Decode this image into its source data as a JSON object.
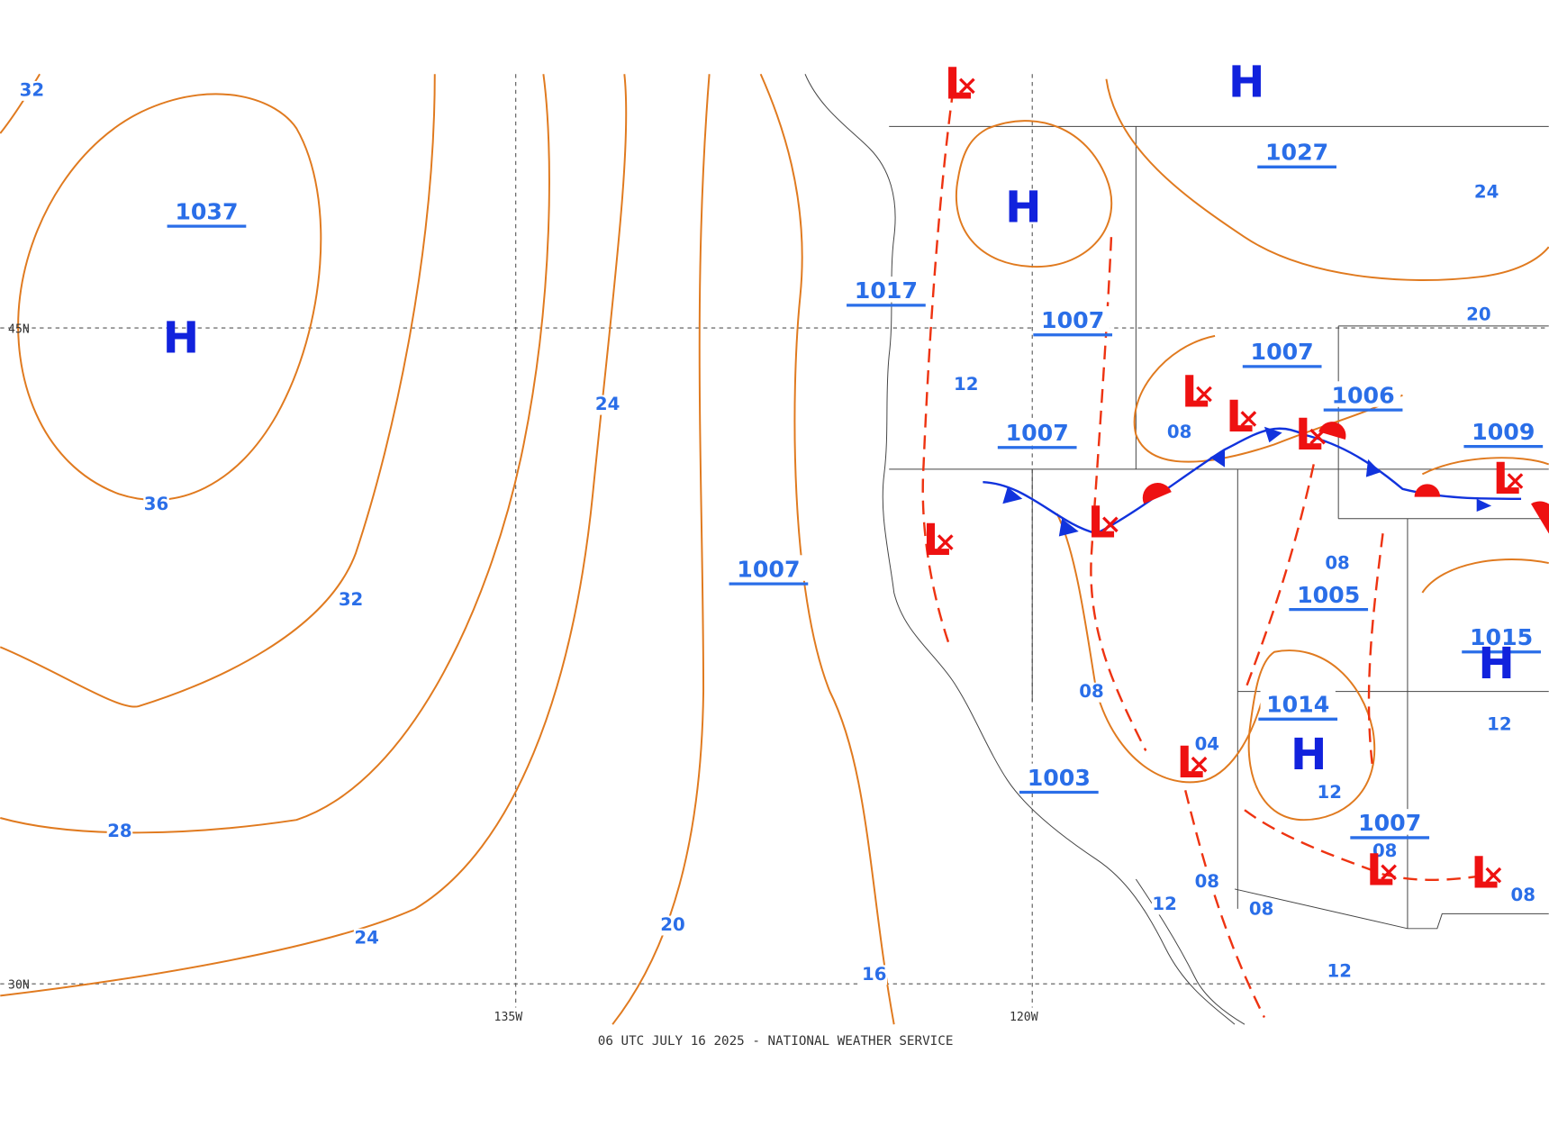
{
  "footer": "06 UTC JULY 16 2025 - NATIONAL WEATHER SERVICE",
  "grid_labels": [
    "45N",
    "30N",
    "135W",
    "120W"
  ],
  "isobar_labels": [
    "32",
    "36",
    "32",
    "28",
    "24",
    "20",
    "16",
    "24",
    "12",
    "08",
    "08",
    "08",
    "04",
    "12",
    "08",
    "08",
    "12",
    "12",
    "20",
    "24",
    "12",
    "08",
    "08"
  ],
  "pressure_centers": [
    "1037",
    "1017",
    "1007",
    "1007",
    "1006",
    "1009",
    "1007",
    "1007",
    "1005",
    "1015",
    "1014",
    "1003",
    "1007",
    "1027"
  ],
  "highs": [
    "H",
    "H",
    "H",
    "H",
    "H"
  ],
  "lows": [
    "L",
    "L",
    "L",
    "L",
    "L",
    "L",
    "L",
    "L",
    "L",
    "L"
  ]
}
